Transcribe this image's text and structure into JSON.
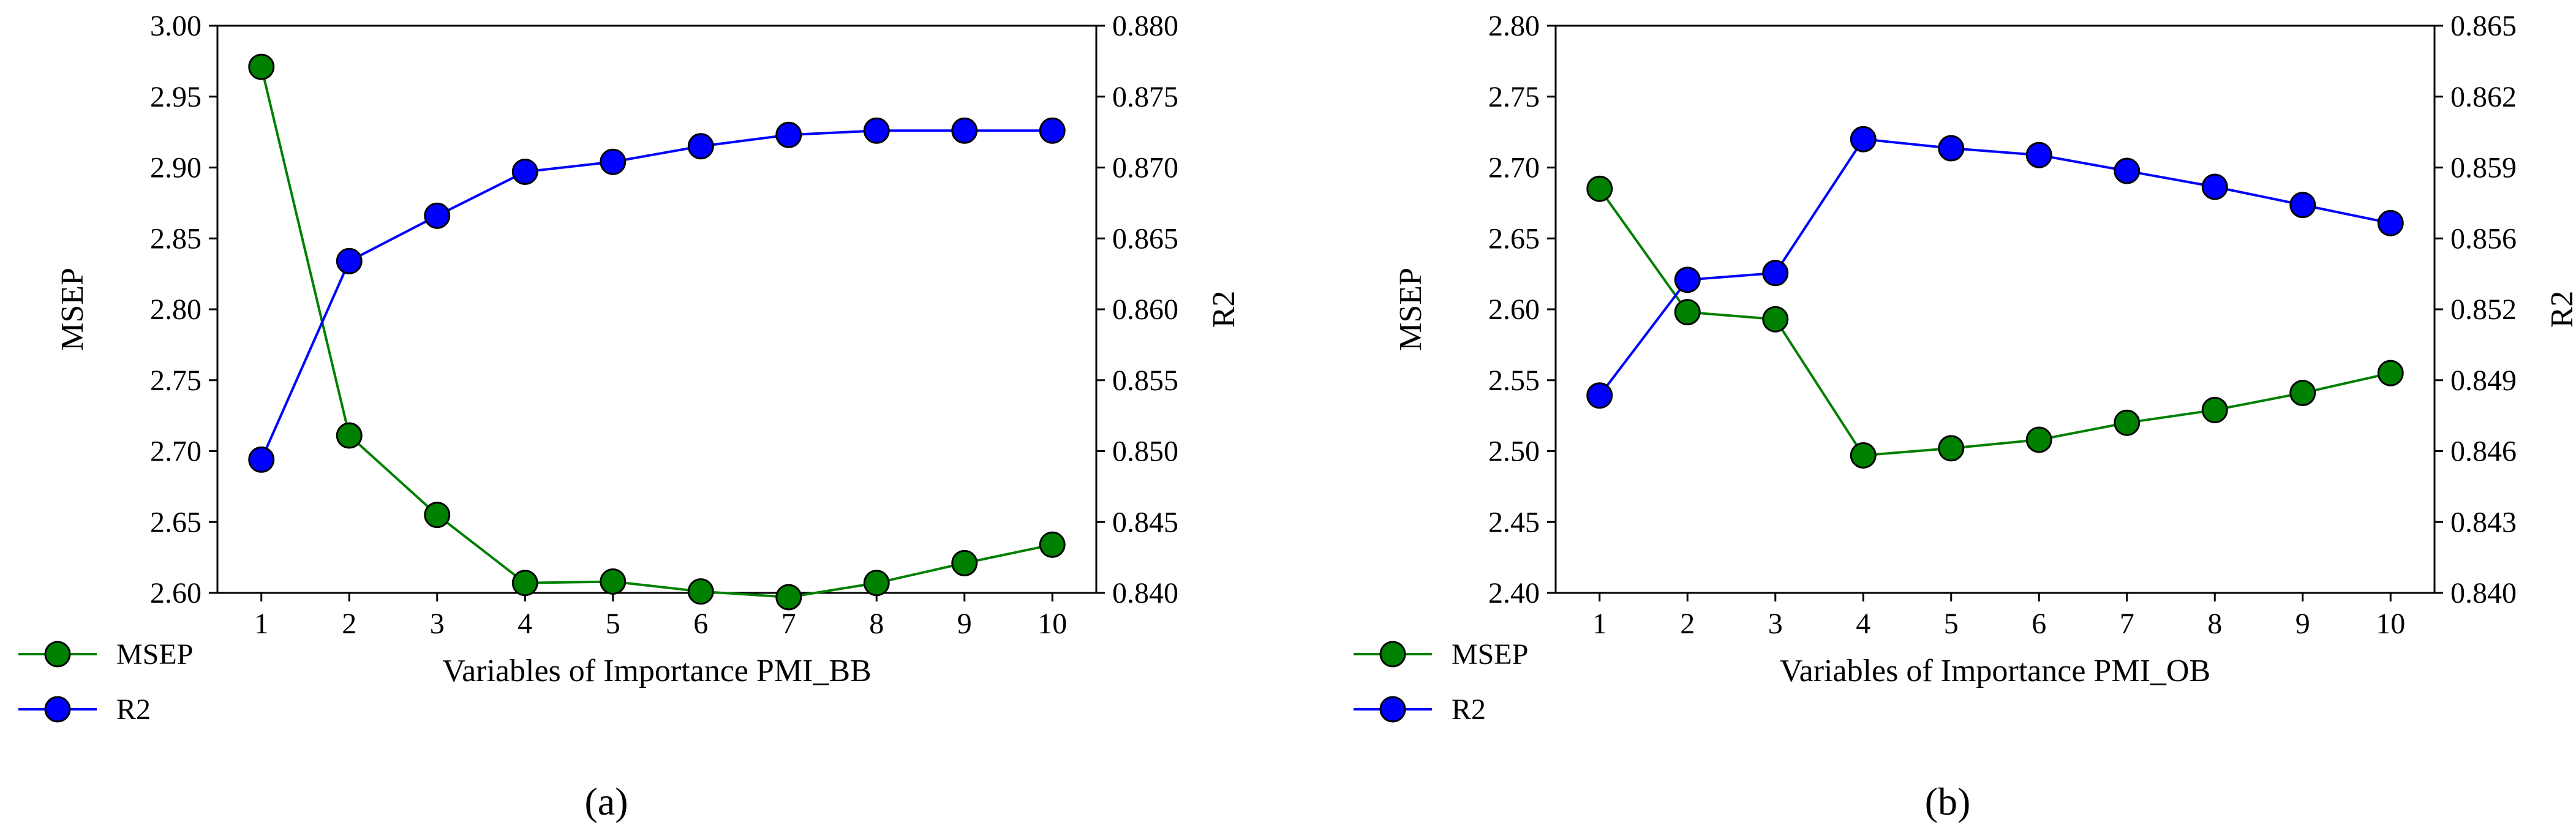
{
  "chart_data": [
    {
      "type": "line",
      "panel_label": "(a)",
      "xlabel": "Variables of Importance PMI_BB",
      "ylabel_left": "MSEP",
      "ylabel_right": "R2",
      "x": [
        1,
        2,
        3,
        4,
        5,
        6,
        7,
        8,
        9,
        10
      ],
      "x_ticks": [
        "1",
        "2",
        "3",
        "4",
        "5",
        "6",
        "7",
        "8",
        "9",
        "10"
      ],
      "ylim_left": [
        2.6,
        3.0
      ],
      "ylim_right": [
        0.84,
        0.88
      ],
      "y_ticks_left": [
        "2.60",
        "2.65",
        "2.70",
        "2.75",
        "2.80",
        "2.85",
        "2.90",
        "2.95",
        "3.00"
      ],
      "y_ticks_right": [
        "0.840",
        "0.845",
        "0.850",
        "0.855",
        "0.860",
        "0.865",
        "0.870",
        "0.875",
        "0.880"
      ],
      "legend_position": "bottom-left, outside plot",
      "grid": false,
      "series": [
        {
          "name": "MSEP",
          "axis": "left",
          "color": "#008000",
          "marker_color": "#008000",
          "values": [
            2.971,
            2.711,
            2.655,
            2.607,
            2.608,
            2.601,
            2.597,
            2.607,
            2.621,
            2.634
          ]
        },
        {
          "name": "R2",
          "axis": "right",
          "color": "#0000ff",
          "marker_color": "#0000ff",
          "values": [
            0.8494,
            0.8634,
            0.8666,
            0.8697,
            0.8704,
            0.8715,
            0.8723,
            0.8726,
            0.8726,
            0.8726
          ]
        }
      ]
    },
    {
      "type": "line",
      "panel_label": "(b)",
      "xlabel": "Variables of Importance PMI_OB",
      "ylabel_left": "MSEP",
      "ylabel_right": "R2",
      "x": [
        1,
        2,
        3,
        4,
        5,
        6,
        7,
        8,
        9,
        10
      ],
      "x_ticks": [
        "1",
        "2",
        "3",
        "4",
        "5",
        "6",
        "7",
        "8",
        "9",
        "10"
      ],
      "ylim_left": [
        2.4,
        2.8
      ],
      "ylim_right": [
        0.84,
        0.865
      ],
      "y_ticks_left": [
        "2.40",
        "2.45",
        "2.50",
        "2.55",
        "2.60",
        "2.65",
        "2.70",
        "2.75",
        "2.80"
      ],
      "y_ticks_right": [
        "0.840",
        "0.843",
        "0.846",
        "0.849",
        "0.852",
        "0.856",
        "0.859",
        "0.862",
        "0.865"
      ],
      "legend_position": "bottom-left, outside plot",
      "grid": false,
      "series": [
        {
          "name": "MSEP",
          "axis": "left",
          "color": "#008000",
          "marker_color": "#008000",
          "values": [
            2.685,
            2.598,
            2.593,
            2.497,
            2.502,
            2.508,
            2.52,
            2.529,
            2.541,
            2.555
          ]
        },
        {
          "name": "R2",
          "axis": "right",
          "color": "#0000ff",
          "marker_color": "#0000ff",
          "values": [
            0.8487,
            0.8538,
            0.8541,
            0.86,
            0.8596,
            0.8593,
            0.8586,
            0.8579,
            0.8571,
            0.8563
          ]
        }
      ]
    }
  ]
}
